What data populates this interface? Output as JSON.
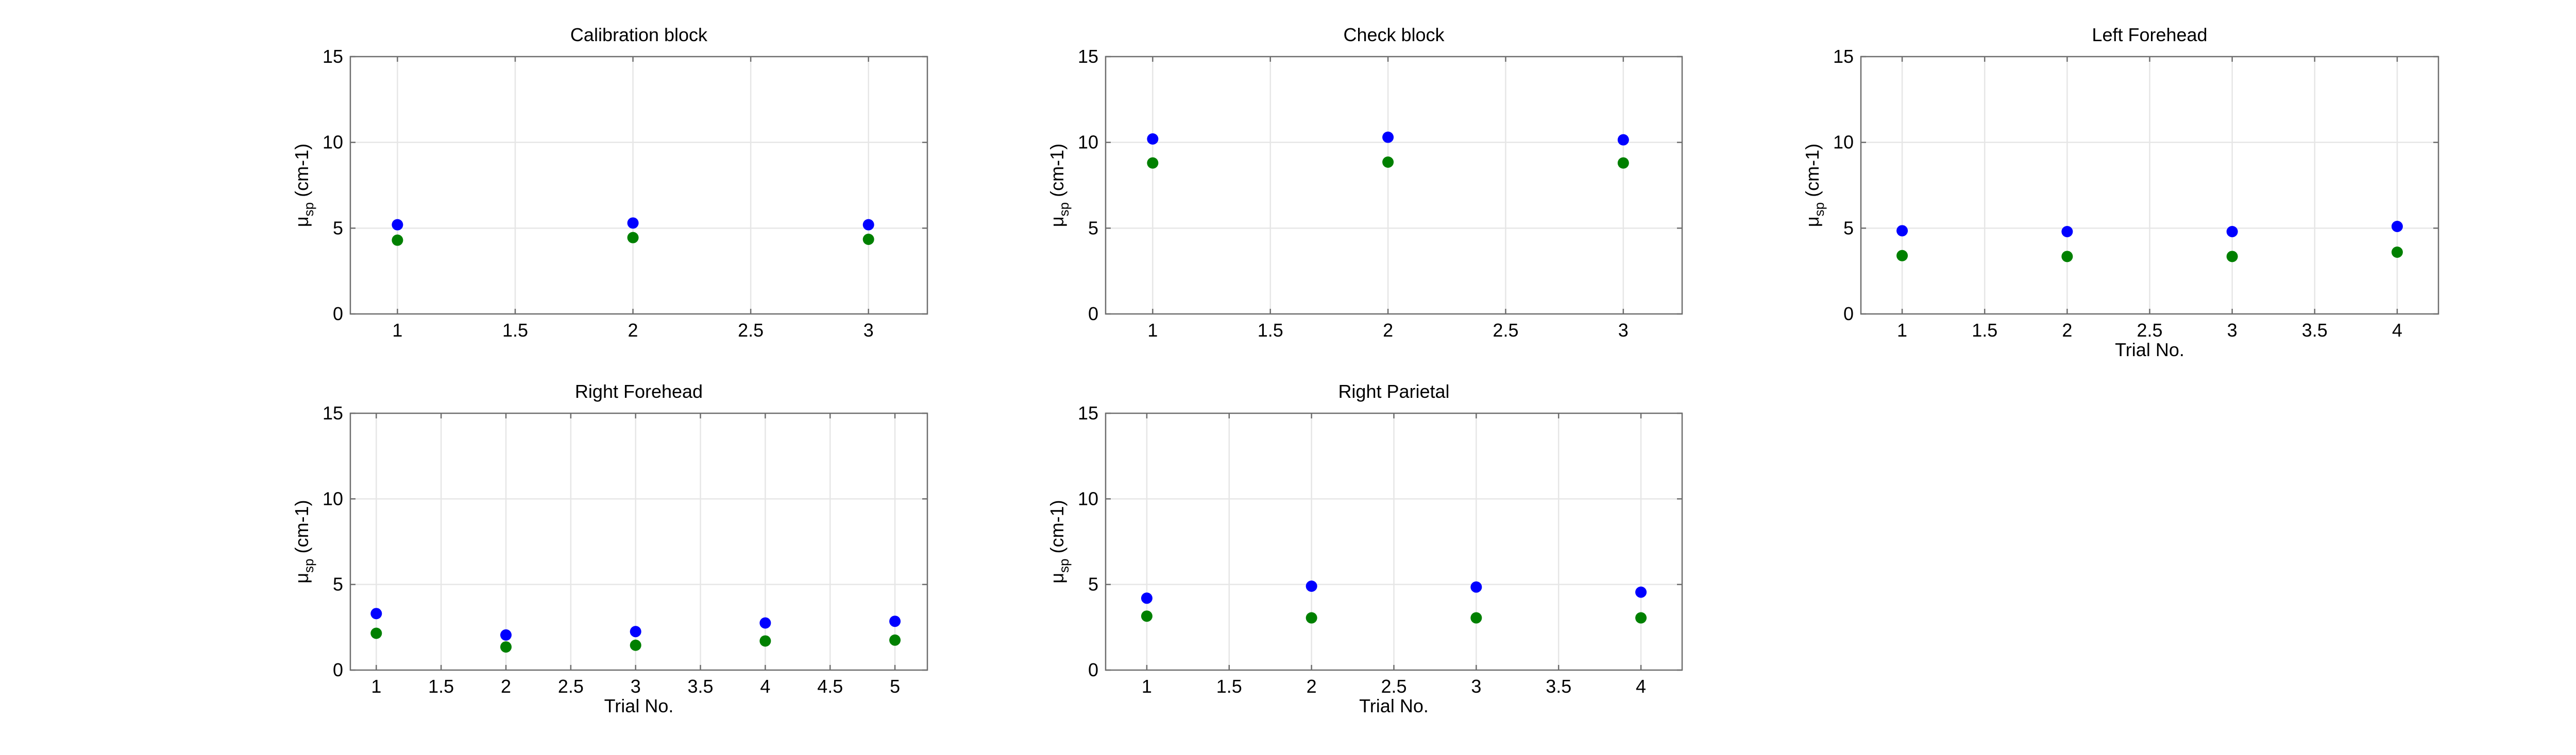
{
  "colors": {
    "series_1": "#0000ff",
    "series_2": "#008000",
    "grid": "#e6e6e6",
    "axes": "#6e6e6e"
  },
  "chart_data": [
    {
      "type": "scatter",
      "title": "Calibration block",
      "xlabel": "",
      "ylabel_main": "μ",
      "ylabel_sub": "sp",
      "ylabel_rest": " (cm-1)",
      "xlim": [
        0.8,
        3.25
      ],
      "ylim": [
        0,
        15
      ],
      "xticks": [
        1,
        1.5,
        2,
        2.5,
        3
      ],
      "yticks": [
        0,
        5,
        10,
        15
      ],
      "grid": true,
      "series": [
        {
          "color": "#0000ff",
          "x": [
            1,
            2,
            3
          ],
          "y": [
            5.2,
            5.3,
            5.2
          ]
        },
        {
          "color": "#008000",
          "x": [
            1,
            2,
            3
          ],
          "y": [
            4.3,
            4.45,
            4.35
          ]
        }
      ]
    },
    {
      "type": "scatter",
      "title": "Check block",
      "xlabel": "",
      "ylabel_main": "μ",
      "ylabel_sub": "sp",
      "ylabel_rest": " (cm-1)",
      "xlim": [
        0.8,
        3.25
      ],
      "ylim": [
        0,
        15
      ],
      "xticks": [
        1,
        1.5,
        2,
        2.5,
        3
      ],
      "yticks": [
        0,
        5,
        10,
        15
      ],
      "grid": true,
      "series": [
        {
          "color": "#0000ff",
          "x": [
            1,
            2,
            3
          ],
          "y": [
            10.2,
            10.3,
            10.15
          ]
        },
        {
          "color": "#008000",
          "x": [
            1,
            2,
            3
          ],
          "y": [
            8.8,
            8.85,
            8.8
          ]
        }
      ]
    },
    {
      "type": "scatter",
      "title": "Left Forehead",
      "xlabel": "Trial No.",
      "ylabel_main": "μ",
      "ylabel_sub": "sp",
      "ylabel_rest": " (cm-1)",
      "xlim": [
        0.75,
        4.25
      ],
      "ylim": [
        0,
        15
      ],
      "xticks": [
        1,
        1.5,
        2,
        2.5,
        3,
        3.5,
        4
      ],
      "yticks": [
        0,
        5,
        10,
        15
      ],
      "grid": true,
      "series": [
        {
          "color": "#0000ff",
          "x": [
            1,
            2,
            3,
            4
          ],
          "y": [
            4.85,
            4.8,
            4.8,
            5.1
          ]
        },
        {
          "color": "#008000",
          "x": [
            1,
            2,
            3,
            4
          ],
          "y": [
            3.4,
            3.35,
            3.35,
            3.6
          ]
        }
      ]
    },
    {
      "type": "scatter",
      "title": "Right Forehead",
      "xlabel": "Trial No.",
      "ylabel_main": "μ",
      "ylabel_sub": "sp",
      "ylabel_rest": " (cm-1)",
      "xlim": [
        0.8,
        5.25
      ],
      "ylim": [
        0,
        15
      ],
      "xticks": [
        1,
        1.5,
        2,
        2.5,
        3,
        3.5,
        4,
        4.5,
        5
      ],
      "yticks": [
        0,
        5,
        10,
        15
      ],
      "grid": true,
      "series": [
        {
          "color": "#0000ff",
          "x": [
            1,
            2,
            3,
            4,
            5
          ],
          "y": [
            3.3,
            2.05,
            2.25,
            2.75,
            2.85
          ]
        },
        {
          "color": "#008000",
          "x": [
            1,
            2,
            3,
            4,
            5
          ],
          "y": [
            2.15,
            1.35,
            1.45,
            1.7,
            1.75
          ]
        }
      ]
    },
    {
      "type": "scatter",
      "title": "Right Parietal",
      "xlabel": "Trial No.",
      "ylabel_main": "μ",
      "ylabel_sub": "sp",
      "ylabel_rest": " (cm-1)",
      "xlim": [
        0.75,
        4.25
      ],
      "ylim": [
        0,
        15
      ],
      "xticks": [
        1,
        1.5,
        2,
        2.5,
        3,
        3.5,
        4
      ],
      "yticks": [
        0,
        5,
        10,
        15
      ],
      "grid": true,
      "series": [
        {
          "color": "#0000ff",
          "x": [
            1,
            2,
            3,
            4
          ],
          "y": [
            4.2,
            4.9,
            4.85,
            4.55
          ]
        },
        {
          "color": "#008000",
          "x": [
            1,
            2,
            3,
            4
          ],
          "y": [
            3.15,
            3.05,
            3.05,
            3.05
          ]
        }
      ]
    }
  ]
}
